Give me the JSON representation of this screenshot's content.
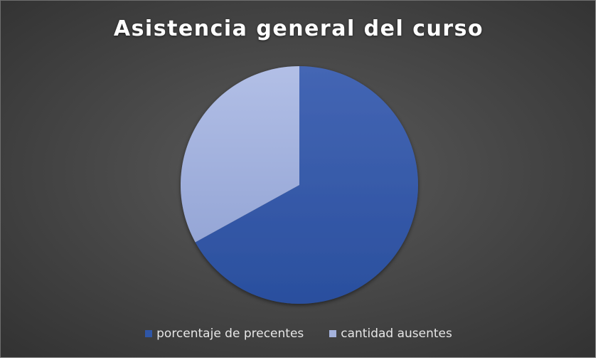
{
  "chart_data": {
    "type": "pie",
    "title": "Asistencia general del curso",
    "categories": [
      "porcentaje de precentes",
      "cantidad ausentes"
    ],
    "values": [
      67,
      33
    ],
    "colors": [
      "#2f56a6",
      "#a4b2dc"
    ],
    "legend_position": "bottom",
    "start_angle_deg": 0,
    "direction": "clockwise"
  }
}
